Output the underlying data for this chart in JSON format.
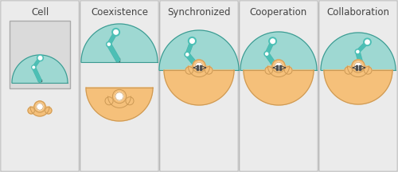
{
  "background_color": "#d4d4d4",
  "panel_bg": "#ebebeb",
  "robot_fill": "#4dbfb5",
  "robot_edge": "#3a9990",
  "human_fill": "#f5c07a",
  "human_edge": "#cc9955",
  "workspace_robot_fill": "#9ed8d2",
  "workspace_human_fill": "#f5c07a",
  "separator_color": "#b0b0b0",
  "text_color": "#444444",
  "title_fontsize": 8.5,
  "labels": [
    "Cell",
    "Coexistence",
    "Synchronized",
    "Cooperation",
    "Collaboration"
  ],
  "figsize": [
    5.0,
    2.16
  ],
  "dpi": 100,
  "tool_color": "#444444",
  "tool_fill": "#666666"
}
